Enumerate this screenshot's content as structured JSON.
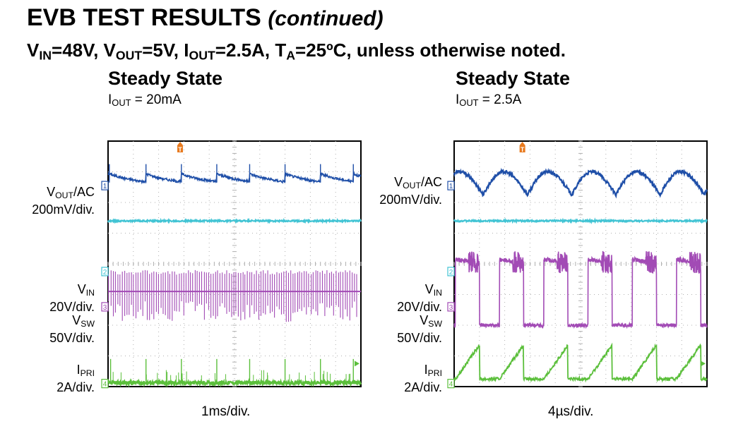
{
  "header": {
    "title": "EVB TEST RESULTS",
    "title_suffix": "(continued)",
    "conditions": {
      "vin_sym": "V",
      "vin_sub": "IN",
      "vin_val": "=48V, ",
      "vout_sym": "V",
      "vout_sub": "OUT",
      "vout_val": "=5V, ",
      "iout_sym": "I",
      "iout_sub": "OUT",
      "iout_val": "=2.5A, ",
      "ta_sym": "T",
      "ta_sub": "A",
      "ta_val": "=25ºC, unless otherwise noted."
    }
  },
  "colors": {
    "ch1": "#1f4fa8",
    "ch2": "#42c4d4",
    "ch3": "#a24bb5",
    "ch4": "#5bbf3b",
    "trigger": "#e87a1e",
    "grid": "#b0b0b0",
    "frame": "#000000"
  },
  "labels": {
    "vout_sym": "V",
    "vout_sub": "OUT",
    "vout_suffix": "/AC",
    "vout_scale": "200mV/div.",
    "vin_sym": "V",
    "vin_sub": "IN",
    "vin_scale": "20V/div.",
    "vsw_sym": "V",
    "vsw_sub": "SW",
    "vsw_scale": "50V/div.",
    "ipri_sym": "I",
    "ipri_sub": "PRI",
    "ipri_scale": "2A/div."
  },
  "panels": [
    {
      "title": "Steady State",
      "iout_sym": "I",
      "iout_sub": "OUT",
      "iout_val": " = 20mA",
      "time_div": "1ms/div.",
      "markers": {
        "ch1": "1",
        "ch2": "2",
        "ch3": "3",
        "ch4": "4",
        "trigger": "T"
      }
    },
    {
      "title": "Steady State",
      "iout_sym": "I",
      "iout_sub": "OUT",
      "iout_val": " = 2.5A",
      "time_div": "4µs/div.",
      "markers": {
        "ch1": "1",
        "ch2": "2",
        "ch3": "3",
        "ch4": "4",
        "trigger": "T"
      }
    }
  ],
  "chart_data": [
    {
      "type": "line",
      "title": "Steady State, IOUT = 20mA",
      "xlabel": "1ms/div.",
      "divisions": {
        "x": 10,
        "y": 8
      },
      "xlim": [
        0,
        10
      ],
      "ylim": [
        0,
        8
      ],
      "series": [
        {
          "name": "VOUT/AC (ch1, 200mV/div.)",
          "shape": "sawtooth-decay",
          "base_div": 6.55,
          "peak_div": 7.25,
          "events_div": [
            0.05,
            1.5,
            2.9,
            4.3,
            5.6,
            7.0,
            8.4,
            9.7
          ]
        },
        {
          "name": "ch2 (flat)",
          "shape": "flat",
          "base_div": 5.4
        },
        {
          "name": "VIN / VSW (ch3, 20V/div. / 50V/div.)",
          "shape": "switching-bursts",
          "base_div": 3.1,
          "high_div": 3.8,
          "low_div": 2.1
        },
        {
          "name": "IPRI (ch4, 2A/div.)",
          "shape": "spikes",
          "base_div": 0.1,
          "spike_div": 0.9,
          "events_div": [
            0.1,
            1.5,
            2.9,
            4.3,
            5.6,
            7.0,
            8.4,
            9.7
          ]
        }
      ]
    },
    {
      "type": "line",
      "title": "Steady State, IOUT = 2.5A",
      "xlabel": "4µs/div.",
      "divisions": {
        "x": 10,
        "y": 8
      },
      "xlim": [
        0,
        10
      ],
      "ylim": [
        0,
        8
      ],
      "series": [
        {
          "name": "VOUT/AC (ch1, 200mV/div.)",
          "shape": "rounded-ripple",
          "base_div": 6.25,
          "peak_div": 7.0,
          "period_div": 1.75,
          "phase_div": 1.15
        },
        {
          "name": "ch2 (flat)",
          "shape": "flat",
          "base_div": 5.4
        },
        {
          "name": "VIN / VSW (ch3, 20V/div. / 50V/div.)",
          "shape": "square-ringing",
          "high_div": 4.2,
          "low_div": 2.0,
          "period_div": 1.75,
          "rise_div": 0.95
        },
        {
          "name": "IPRI (ch4, 2A/div.)",
          "shape": "ramp",
          "base_div": 0.1,
          "peak_div": 1.2,
          "period_div": 1.75,
          "rise_div": 0.95
        }
      ]
    }
  ]
}
